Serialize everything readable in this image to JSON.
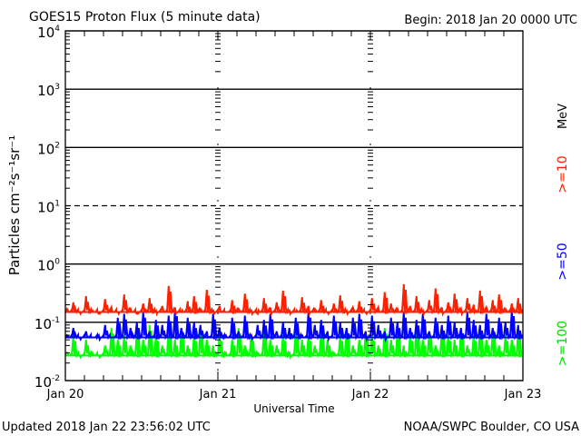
{
  "chart_data": {
    "type": "line",
    "title": "GOES15 Proton Flux (5 minute data)",
    "subtitle": "Begin: 2018 Jan 20 0000 UTC",
    "xlabel": "Universal Time",
    "ylabel": "Particles cm⁻²s⁻¹sr⁻¹",
    "yscale": "log",
    "ylim": [
      0.01,
      10000
    ],
    "y_ticks": [
      {
        "value": 10000,
        "base": "10",
        "exp": "4"
      },
      {
        "value": 1000,
        "base": "10",
        "exp": "3"
      },
      {
        "value": 100,
        "base": "10",
        "exp": "2"
      },
      {
        "value": 10,
        "base": "10",
        "exp": "1"
      },
      {
        "value": 1,
        "base": "10",
        "exp": "0"
      },
      {
        "value": 0.1,
        "base": "10",
        "exp": "-1"
      },
      {
        "value": 0.01,
        "base": "10",
        "exp": "-2"
      }
    ],
    "dashed_threshold": 10,
    "x_unit": "hours since 2018 Jan 20 00:00 UTC",
    "xlim": [
      0,
      72
    ],
    "x_ticks": [
      {
        "value": 0,
        "label": "Jan 20"
      },
      {
        "value": 24,
        "label": "Jan 21"
      },
      {
        "value": 48,
        "label": "Jan 22"
      },
      {
        "value": 72,
        "label": "Jan 23"
      }
    ],
    "energy_unit": "MeV",
    "series": [
      {
        "name": ">=10",
        "color": "#ff2000",
        "baseline": 0.15,
        "values": [
          0.17,
          0.22,
          0.15,
          0.28,
          0.16,
          0.14,
          0.25,
          0.18,
          0.15,
          0.3,
          0.17,
          0.14,
          0.21,
          0.26,
          0.16,
          0.19,
          0.42,
          0.18,
          0.15,
          0.23,
          0.28,
          0.17,
          0.36,
          0.16,
          0.19,
          0.15,
          0.24,
          0.17,
          0.31,
          0.16,
          0.14,
          0.26,
          0.18,
          0.22,
          0.35,
          0.16,
          0.15,
          0.27,
          0.19,
          0.17,
          0.24,
          0.15,
          0.21,
          0.29,
          0.16,
          0.18,
          0.23,
          0.15,
          0.26,
          0.18,
          0.33,
          0.21,
          0.17,
          0.45,
          0.19,
          0.28,
          0.16,
          0.24,
          0.38,
          0.18,
          0.22,
          0.31,
          0.17,
          0.26,
          0.2,
          0.35,
          0.18,
          0.24,
          0.3,
          0.17,
          0.21,
          0.26
        ]
      },
      {
        "name": ">=50",
        "color": "#0000ff",
        "baseline": 0.055,
        "values": [
          0.06,
          0.08,
          0.055,
          0.07,
          0.055,
          0.06,
          0.09,
          0.055,
          0.12,
          0.14,
          0.08,
          0.1,
          0.15,
          0.07,
          0.11,
          0.09,
          0.13,
          0.16,
          0.08,
          0.12,
          0.1,
          0.09,
          0.07,
          0.14,
          0.08,
          0.06,
          0.12,
          0.07,
          0.13,
          0.06,
          0.09,
          0.11,
          0.14,
          0.07,
          0.1,
          0.08,
          0.12,
          0.06,
          0.15,
          0.09,
          0.11,
          0.07,
          0.13,
          0.1,
          0.08,
          0.12,
          0.14,
          0.07,
          0.13,
          0.09,
          0.07,
          0.12,
          0.1,
          0.15,
          0.08,
          0.11,
          0.14,
          0.07,
          0.12,
          0.09,
          0.13,
          0.1,
          0.08,
          0.15,
          0.11,
          0.09,
          0.14,
          0.08,
          0.12,
          0.1,
          0.16,
          0.09
        ]
      },
      {
        "name": ">=100",
        "color": "#00ff00",
        "baseline": 0.027,
        "values": [
          0.03,
          0.06,
          0.027,
          0.05,
          0.03,
          0.027,
          0.04,
          0.08,
          0.05,
          0.06,
          0.04,
          0.07,
          0.05,
          0.09,
          0.06,
          0.04,
          0.08,
          0.05,
          0.07,
          0.04,
          0.06,
          0.08,
          0.05,
          0.04,
          0.06,
          0.03,
          0.05,
          0.08,
          0.04,
          0.06,
          0.03,
          0.07,
          0.05,
          0.04,
          0.06,
          0.03,
          0.08,
          0.05,
          0.06,
          0.04,
          0.07,
          0.05,
          0.03,
          0.06,
          0.08,
          0.04,
          0.05,
          0.07,
          0.06,
          0.04,
          0.08,
          0.05,
          0.07,
          0.04,
          0.06,
          0.09,
          0.05,
          0.07,
          0.04,
          0.08,
          0.06,
          0.05,
          0.07,
          0.04,
          0.06,
          0.08,
          0.05,
          0.07,
          0.04,
          0.06,
          0.05,
          0.07
        ]
      }
    ]
  },
  "footer": {
    "updated": "Updated 2018 Jan 22 23:56:02 UTC",
    "source": "NOAA/SWPC Boulder, CO USA"
  }
}
